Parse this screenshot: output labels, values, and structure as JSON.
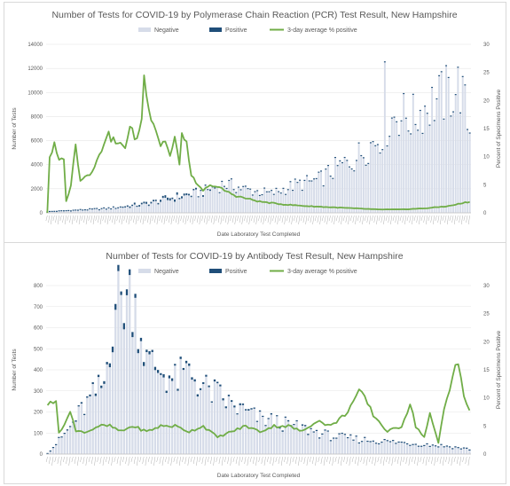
{
  "chart_data": [
    {
      "type": "bar",
      "title": "Number of Tests for COVID-19 by Polymerase Chain Reaction (PCR) Test Result, New Hampshire",
      "xlabel": "Date Laboratory Test Completed",
      "ylabel": "Number of Tests",
      "y2label": "Percent of Specimens Positive",
      "ylim": [
        0,
        14000
      ],
      "y2lim": [
        0,
        30
      ],
      "yticks": [
        0,
        2000,
        4000,
        6000,
        8000,
        10000,
        12000,
        14000
      ],
      "y2ticks": [
        0,
        5,
        10,
        15,
        20,
        25,
        30
      ],
      "legend": {
        "position": "top",
        "items": [
          "Negative",
          "Positive",
          "3-day average % positive"
        ]
      },
      "colors": {
        "negative": "#d6dce9",
        "positive": "#1f4e79",
        "line": "#70ad47"
      },
      "n_days": 180,
      "negative_keypoints": [
        [
          0,
          50
        ],
        [
          10,
          150
        ],
        [
          25,
          300
        ],
        [
          40,
          600
        ],
        [
          55,
          1200
        ],
        [
          65,
          1600
        ],
        [
          75,
          2300
        ],
        [
          85,
          1800
        ],
        [
          95,
          1500
        ],
        [
          105,
          2200
        ],
        [
          115,
          2600
        ],
        [
          122,
          3500
        ],
        [
          130,
          4300
        ],
        [
          140,
          6000
        ],
        [
          148,
          8000
        ],
        [
          155,
          7600
        ],
        [
          160,
          8500
        ],
        [
          165,
          9000
        ],
        [
          170,
          9600
        ],
        [
          175,
          10200
        ],
        [
          179,
          6500
        ]
      ],
      "positive_keypoints": [
        [
          0,
          0
        ],
        [
          15,
          30
        ],
        [
          30,
          90
        ],
        [
          40,
          140
        ],
        [
          50,
          180
        ],
        [
          55,
          160
        ],
        [
          65,
          110
        ],
        [
          75,
          70
        ],
        [
          90,
          40
        ],
        [
          110,
          25
        ],
        [
          140,
          35
        ],
        [
          179,
          60
        ]
      ],
      "line_keypoints": [
        [
          0,
          0
        ],
        [
          1,
          10
        ],
        [
          3,
          12
        ],
        [
          5,
          9
        ],
        [
          7,
          10
        ],
        [
          8,
          2
        ],
        [
          10,
          5
        ],
        [
          12,
          12
        ],
        [
          14,
          6
        ],
        [
          18,
          7
        ],
        [
          22,
          10
        ],
        [
          25,
          14
        ],
        [
          28,
          13
        ],
        [
          30,
          12
        ],
        [
          33,
          12
        ],
        [
          35,
          15
        ],
        [
          38,
          13
        ],
        [
          40,
          17
        ],
        [
          41,
          24
        ],
        [
          42,
          22
        ],
        [
          44,
          17
        ],
        [
          46,
          15
        ],
        [
          48,
          12
        ],
        [
          50,
          13
        ],
        [
          52,
          10
        ],
        [
          54,
          13
        ],
        [
          55,
          11
        ],
        [
          56,
          9
        ],
        [
          57,
          14
        ],
        [
          59,
          12
        ],
        [
          61,
          7
        ],
        [
          63,
          5
        ],
        [
          66,
          4
        ],
        [
          70,
          5
        ],
        [
          75,
          4
        ],
        [
          80,
          3
        ],
        [
          85,
          2.5
        ],
        [
          90,
          2
        ],
        [
          100,
          1.5
        ],
        [
          110,
          1.2
        ],
        [
          120,
          1
        ],
        [
          130,
          0.8
        ],
        [
          140,
          0.6
        ],
        [
          150,
          0.6
        ],
        [
          160,
          0.8
        ],
        [
          170,
          1.2
        ],
        [
          179,
          2
        ]
      ]
    },
    {
      "type": "bar",
      "title": "Number of Tests for COVID-19 by Antibody Test Result, New Hampshire",
      "xlabel": "Date Laboratory Test Completed",
      "ylabel": "Number of Tests",
      "y2label": "Percent of Specimens Positive",
      "ylim": [
        0,
        800
      ],
      "y2lim": [
        0,
        30
      ],
      "yticks": [
        0,
        100,
        200,
        300,
        400,
        500,
        600,
        700,
        800
      ],
      "y2ticks": [
        0,
        5,
        10,
        15,
        20,
        25,
        30
      ],
      "legend": {
        "position": "top",
        "items": [
          "Negative",
          "Positive",
          "3-day average % positive"
        ]
      },
      "colors": {
        "negative": "#d6dce9",
        "positive": "#1f4e79",
        "line": "#70ad47"
      },
      "n_days": 150,
      "negative_keypoints": [
        [
          0,
          0
        ],
        [
          4,
          60
        ],
        [
          8,
          120
        ],
        [
          12,
          200
        ],
        [
          16,
          260
        ],
        [
          20,
          320
        ],
        [
          24,
          700
        ],
        [
          27,
          710
        ],
        [
          30,
          730
        ],
        [
          32,
          620
        ],
        [
          35,
          420
        ],
        [
          40,
          380
        ],
        [
          45,
          330
        ],
        [
          50,
          380
        ],
        [
          55,
          300
        ],
        [
          60,
          270
        ],
        [
          65,
          220
        ],
        [
          70,
          190
        ],
        [
          75,
          160
        ],
        [
          80,
          150
        ],
        [
          85,
          130
        ],
        [
          90,
          115
        ],
        [
          95,
          100
        ],
        [
          100,
          80
        ],
        [
          110,
          65
        ],
        [
          120,
          55
        ],
        [
          130,
          45
        ],
        [
          140,
          35
        ],
        [
          149,
          20
        ]
      ],
      "positive_keypoints": [
        [
          0,
          0
        ],
        [
          4,
          3
        ],
        [
          10,
          6
        ],
        [
          20,
          10
        ],
        [
          24,
          25
        ],
        [
          30,
          22
        ],
        [
          35,
          15
        ],
        [
          45,
          10
        ],
        [
          60,
          8
        ],
        [
          80,
          6
        ],
        [
          100,
          4
        ],
        [
          120,
          3
        ],
        [
          149,
          2
        ]
      ],
      "line_keypoints": [
        [
          0,
          9
        ],
        [
          2,
          9
        ],
        [
          3,
          10
        ],
        [
          4,
          4
        ],
        [
          6,
          5
        ],
        [
          8,
          8
        ],
        [
          10,
          4
        ],
        [
          14,
          4
        ],
        [
          18,
          5
        ],
        [
          22,
          5
        ],
        [
          26,
          4
        ],
        [
          30,
          5
        ],
        [
          35,
          4
        ],
        [
          40,
          5
        ],
        [
          45,
          5
        ],
        [
          50,
          4
        ],
        [
          55,
          5
        ],
        [
          60,
          3
        ],
        [
          65,
          4
        ],
        [
          70,
          5
        ],
        [
          75,
          4
        ],
        [
          80,
          5
        ],
        [
          85,
          5
        ],
        [
          90,
          4
        ],
        [
          95,
          6
        ],
        [
          100,
          5
        ],
        [
          105,
          7
        ],
        [
          110,
          11
        ],
        [
          112,
          10
        ],
        [
          115,
          7
        ],
        [
          120,
          4
        ],
        [
          125,
          5
        ],
        [
          128,
          9
        ],
        [
          130,
          5
        ],
        [
          133,
          3
        ],
        [
          135,
          7
        ],
        [
          138,
          2
        ],
        [
          140,
          8
        ],
        [
          142,
          12
        ],
        [
          144,
          16
        ],
        [
          145,
          16
        ],
        [
          147,
          10
        ],
        [
          149,
          8
        ]
      ]
    }
  ]
}
